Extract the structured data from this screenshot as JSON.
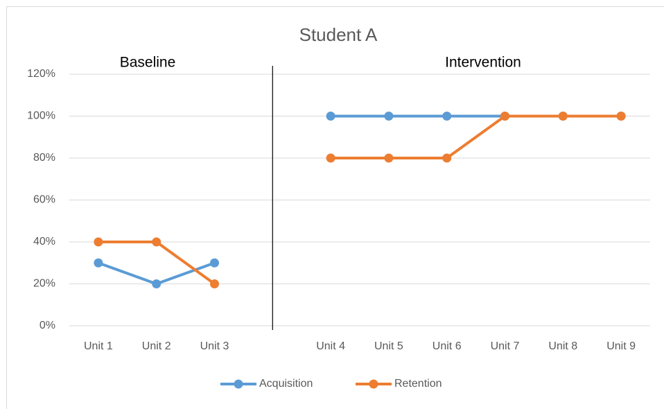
{
  "chart_data": {
    "type": "line",
    "title": "Student A",
    "categories": [
      "Unit 1",
      "Unit 2",
      "Unit 3",
      null,
      "Unit 4",
      "Unit 5",
      "Unit 6",
      "Unit 7",
      "Unit 8",
      "Unit 9"
    ],
    "series": [
      {
        "name": "Acquisition",
        "color": "#5b9bd5",
        "values": [
          30,
          20,
          30,
          null,
          100,
          100,
          100,
          100,
          100,
          100
        ]
      },
      {
        "name": "Retention",
        "color": "#ed7d31",
        "values": [
          40,
          40,
          20,
          null,
          80,
          80,
          80,
          100,
          100,
          100
        ]
      }
    ],
    "annotations": [
      "Baseline",
      "Intervention"
    ],
    "ylim": [
      0,
      120
    ],
    "yticks": [
      {
        "value": 0,
        "label": "0%"
      },
      {
        "value": 20,
        "label": "20%"
      },
      {
        "value": 40,
        "label": "40%"
      },
      {
        "value": 60,
        "label": "60%"
      },
      {
        "value": 80,
        "label": "80%"
      },
      {
        "value": 100,
        "label": "100%"
      },
      {
        "value": 120,
        "label": "120%"
      }
    ],
    "grid": true,
    "legend": "bottom"
  }
}
